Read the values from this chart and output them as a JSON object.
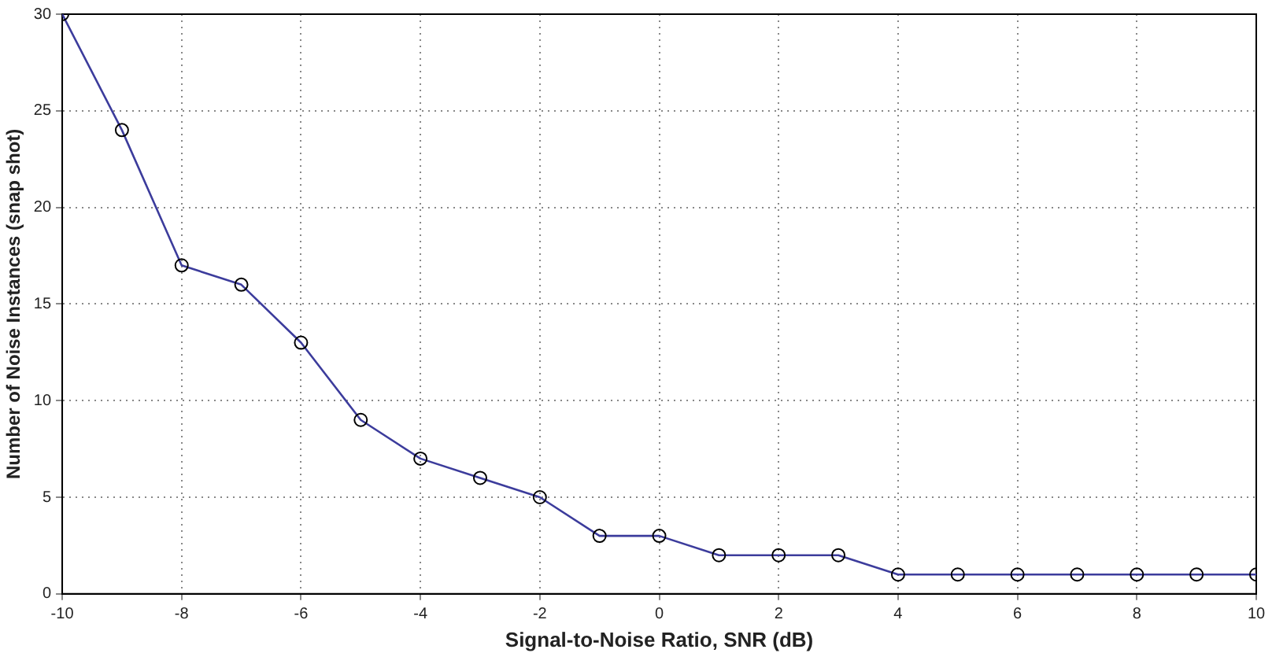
{
  "chart_data": {
    "type": "line",
    "xlabel": "Signal-to-Noise Ratio, SNR (dB)",
    "ylabel": "Number of Noise Instances (snap shot)",
    "x": [
      -10,
      -9,
      -8,
      -7,
      -6,
      -5,
      -4,
      -3,
      -2,
      -1,
      0,
      1,
      2,
      3,
      4,
      5,
      6,
      7,
      8,
      9,
      10
    ],
    "series": [
      {
        "color": "#3c3c9c",
        "values": [
          30,
          24,
          17,
          16,
          13,
          9,
          7,
          6,
          5,
          3,
          3,
          2,
          2,
          2,
          1,
          1,
          1,
          1,
          1,
          1,
          1
        ]
      }
    ],
    "xlim": [
      -10,
      10
    ],
    "xticks": [
      -10,
      -8,
      -6,
      -4,
      -2,
      0,
      2,
      4,
      6,
      8,
      10
    ],
    "ylim": [
      0,
      30
    ],
    "yticks": [
      0,
      5,
      10,
      15,
      20,
      25,
      30
    ],
    "grid": true,
    "marker": "circle",
    "line_style": "solid",
    "legend": false
  }
}
